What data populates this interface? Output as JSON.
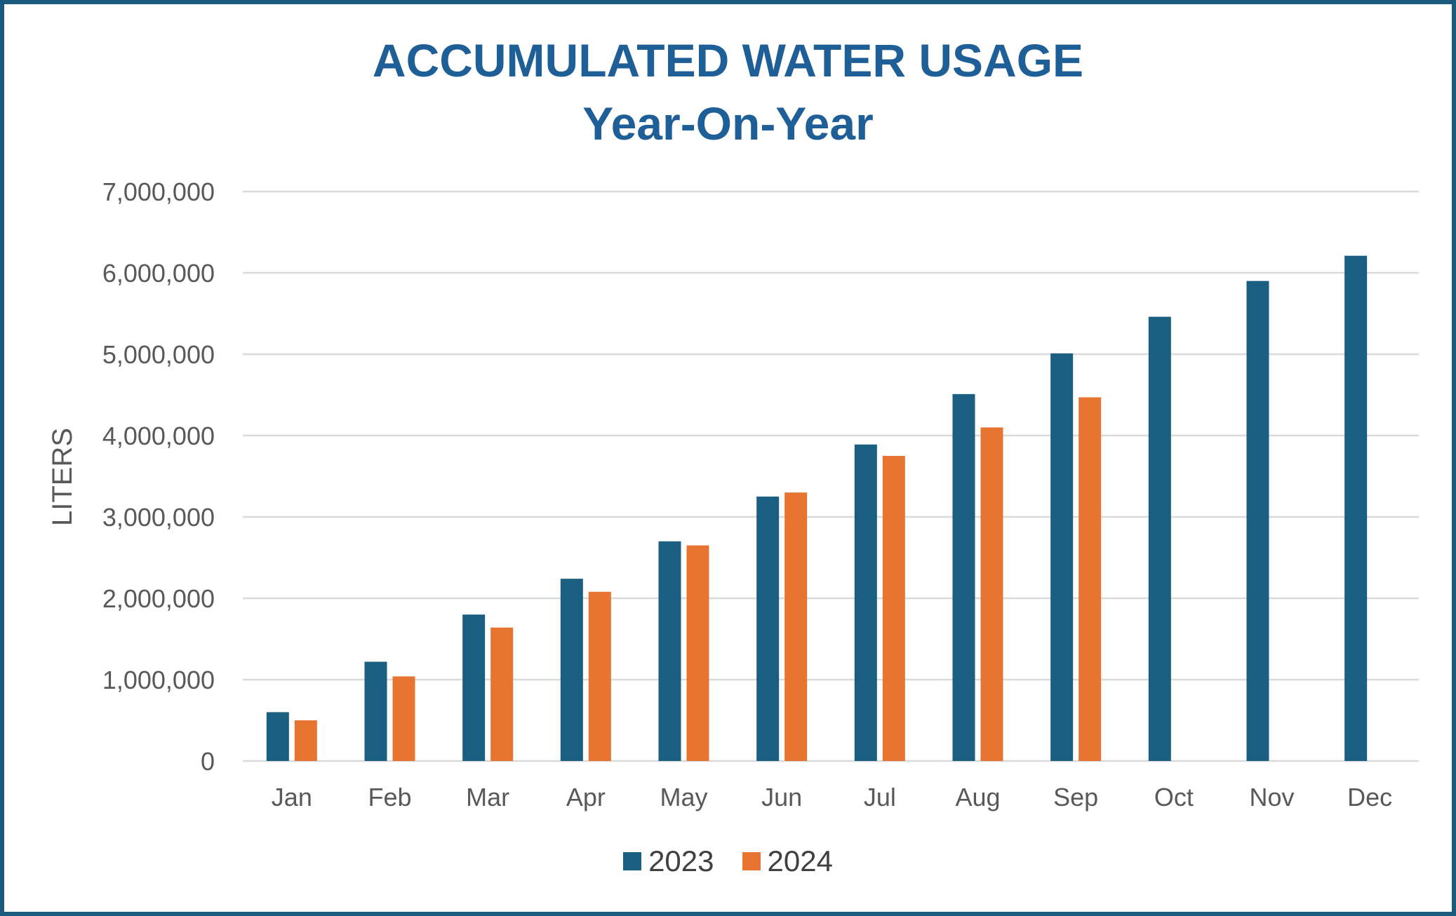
{
  "colors": {
    "frame": "#1a5a7c",
    "title": "#1f5f98",
    "series_2023": "#1a5f82",
    "series_2024": "#e87432",
    "gridline": "#d9d9d9",
    "axis_text": "#595959"
  },
  "chart_data": {
    "type": "bar",
    "title": "ACCUMULATED WATER USAGE",
    "subtitle": "Year-On-Year",
    "xlabel": "",
    "ylabel": "LITERS",
    "ylim": [
      0,
      7000000
    ],
    "yticks": [
      "0",
      "1,000,000",
      "2,000,000",
      "3,000,000",
      "4,000,000",
      "5,000,000",
      "6,000,000",
      "7,000,000"
    ],
    "ytick_values": [
      0,
      1000000,
      2000000,
      3000000,
      4000000,
      5000000,
      6000000,
      7000000
    ],
    "grid": true,
    "legend_position": "bottom",
    "categories": [
      "Jan",
      "Feb",
      "Mar",
      "Apr",
      "May",
      "Jun",
      "Jul",
      "Aug",
      "Sep",
      "Oct",
      "Nov",
      "Dec"
    ],
    "series": [
      {
        "name": "2023",
        "color": "#1a5f82",
        "values": [
          600000,
          1220000,
          1800000,
          2240000,
          2700000,
          3250000,
          3890000,
          4510000,
          5010000,
          5460000,
          5900000,
          6210000
        ]
      },
      {
        "name": "2024",
        "color": "#e87432",
        "values": [
          500000,
          1040000,
          1640000,
          2080000,
          2650000,
          3300000,
          3750000,
          4100000,
          4470000,
          null,
          null,
          null
        ]
      }
    ]
  }
}
